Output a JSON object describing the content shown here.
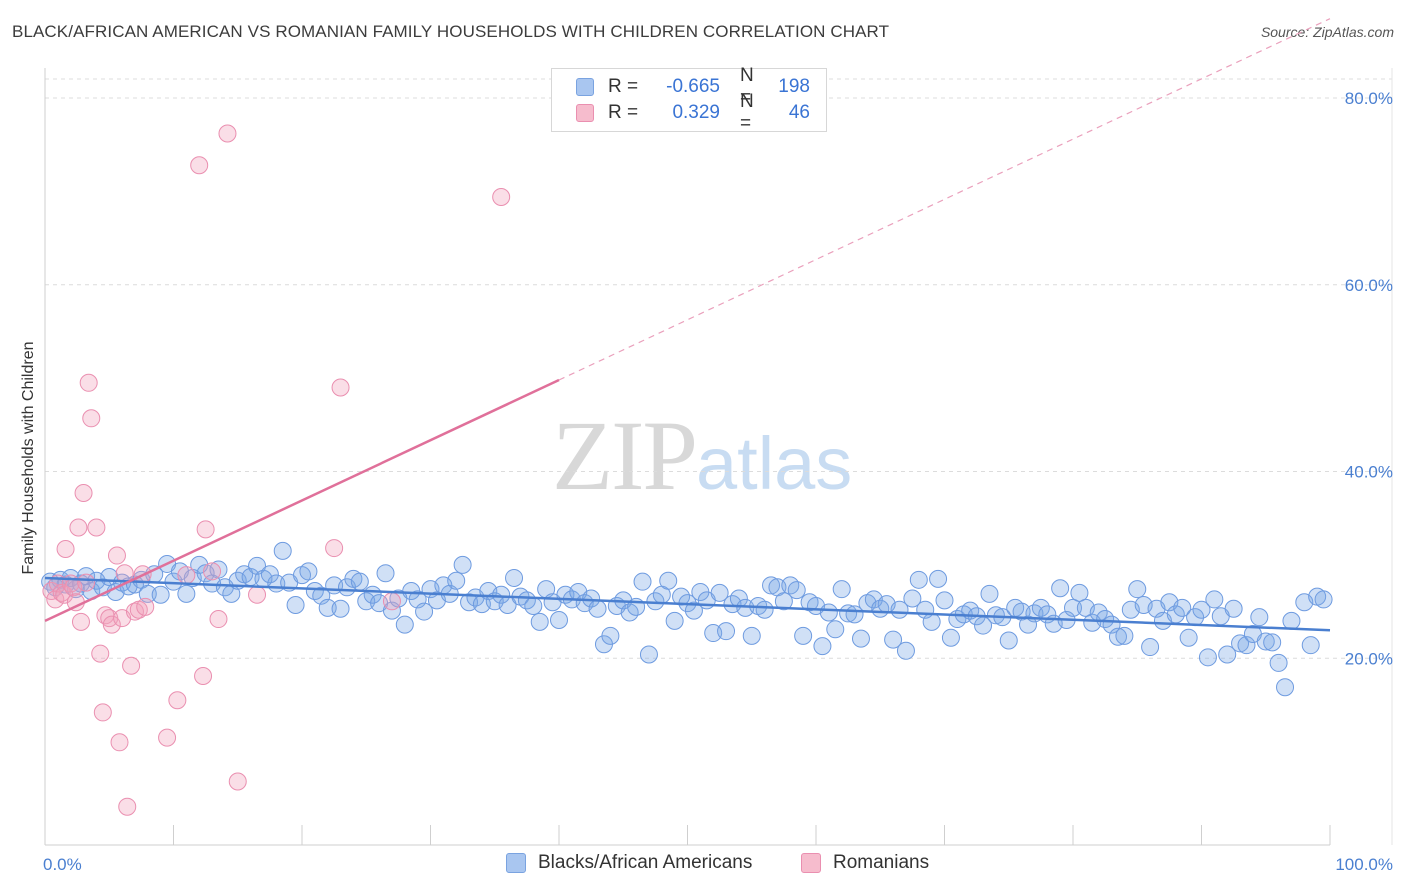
{
  "title": "BLACK/AFRICAN AMERICAN VS ROMANIAN FAMILY HOUSEHOLDS WITH CHILDREN CORRELATION CHART",
  "source": "Source: ZipAtlas.com",
  "watermark": {
    "zip": "ZIP",
    "atlas": "atlas"
  },
  "colors": {
    "blue": "#4a7fd0",
    "blue_fill": "rgba(120,165,230,0.35)",
    "blue_stroke": "#6e9be0",
    "pink": "#e0709a",
    "pink_fill": "rgba(240,160,185,0.35)",
    "pink_stroke": "#ea8fb0",
    "grid": "#dcdcdc"
  },
  "legend": {
    "rows": [
      {
        "r_label": "R =",
        "r_value": "-0.665",
        "n_label": "N =",
        "n_value": "198",
        "color": "#a9c6f0"
      },
      {
        "r_label": "R =",
        "r_value": "0.329",
        "n_label": "N =",
        "n_value": "46",
        "color": "#f6bccd"
      }
    ]
  },
  "bottom_legend": [
    {
      "label": "Blacks/African Americans",
      "color": "#a9c6f0"
    },
    {
      "label": "Romanians",
      "color": "#f6bccd"
    }
  ],
  "chart_data": {
    "type": "scatter",
    "title": "BLACK/AFRICAN AMERICAN VS ROMANIAN FAMILY HOUSEHOLDS WITH CHILDREN CORRELATION CHART",
    "xlabel": "",
    "ylabel": "Family Households with Children",
    "xlim": [
      0,
      100
    ],
    "ylim": [
      0,
      83
    ],
    "x_tick_labels": [
      {
        "value": 0,
        "label": "0.0%"
      },
      {
        "value": 100,
        "label": "100.0%"
      }
    ],
    "y_ticks": [
      {
        "value": 20,
        "label": "20.0%"
      },
      {
        "value": 40,
        "label": "40.0%"
      },
      {
        "value": 60,
        "label": "60.0%"
      },
      {
        "value": 80,
        "label": "80.0%"
      }
    ],
    "series": [
      {
        "name": "Blacks/African Americans",
        "color": "#4a7fd0",
        "trend": {
          "x0": 0,
          "y0": 28.6,
          "x1": 100,
          "y1": 23.0
        },
        "points": [
          [
            0.4,
            28.2
          ],
          [
            0.8,
            27.6
          ],
          [
            1.2,
            28.4
          ],
          [
            1.6,
            27.9
          ],
          [
            2.0,
            28.6
          ],
          [
            2.4,
            27.4
          ],
          [
            2.8,
            28.0
          ],
          [
            3.2,
            28.8
          ],
          [
            3.6,
            27.2
          ],
          [
            4.0,
            28.3
          ],
          [
            4.5,
            27.6
          ],
          [
            5.0,
            28.7
          ],
          [
            5.5,
            27.1
          ],
          [
            6.0,
            28.1
          ],
          [
            6.5,
            27.7
          ],
          [
            7.0,
            27.9
          ],
          [
            7.5,
            28.4
          ],
          [
            8.0,
            26.9
          ],
          [
            8.5,
            29.0
          ],
          [
            9.0,
            26.8
          ],
          [
            9.5,
            30.1
          ],
          [
            10.0,
            28.2
          ],
          [
            10.5,
            29.3
          ],
          [
            11.0,
            26.9
          ],
          [
            11.5,
            28.6
          ],
          [
            12.0,
            30.0
          ],
          [
            12.5,
            29.1
          ],
          [
            13.0,
            28.0
          ],
          [
            13.5,
            29.5
          ],
          [
            14.0,
            27.6
          ],
          [
            14.5,
            26.9
          ],
          [
            15.0,
            28.3
          ],
          [
            15.5,
            29.0
          ],
          [
            16.0,
            28.7
          ],
          [
            16.5,
            29.9
          ],
          [
            17.0,
            28.5
          ],
          [
            17.5,
            29.0
          ],
          [
            18.0,
            28.0
          ],
          [
            18.5,
            31.5
          ],
          [
            19.0,
            28.1
          ],
          [
            19.5,
            25.7
          ],
          [
            20.0,
            28.9
          ],
          [
            20.5,
            29.3
          ],
          [
            21.0,
            27.2
          ],
          [
            21.5,
            26.7
          ],
          [
            22.0,
            25.4
          ],
          [
            22.5,
            27.8
          ],
          [
            23.0,
            25.3
          ],
          [
            23.5,
            27.6
          ],
          [
            24.0,
            28.5
          ],
          [
            24.5,
            28.2
          ],
          [
            25.0,
            26.1
          ],
          [
            25.5,
            26.8
          ],
          [
            26.0,
            25.9
          ],
          [
            26.5,
            29.1
          ],
          [
            27.0,
            25.1
          ],
          [
            27.5,
            26.4
          ],
          [
            28.0,
            23.6
          ],
          [
            28.5,
            27.2
          ],
          [
            29.0,
            26.3
          ],
          [
            29.5,
            25.0
          ],
          [
            30.0,
            27.4
          ],
          [
            30.5,
            26.2
          ],
          [
            31.0,
            27.8
          ],
          [
            31.5,
            26.9
          ],
          [
            32.0,
            28.3
          ],
          [
            32.5,
            30.0
          ],
          [
            33.0,
            26.0
          ],
          [
            33.5,
            26.5
          ],
          [
            34.0,
            25.8
          ],
          [
            34.5,
            27.2
          ],
          [
            35.0,
            26.1
          ],
          [
            35.5,
            26.8
          ],
          [
            36.0,
            25.7
          ],
          [
            36.5,
            28.6
          ],
          [
            37.0,
            26.6
          ],
          [
            37.5,
            26.2
          ],
          [
            38.0,
            25.6
          ],
          [
            38.5,
            23.9
          ],
          [
            39.0,
            27.4
          ],
          [
            39.5,
            26.0
          ],
          [
            40.0,
            24.1
          ],
          [
            40.5,
            26.8
          ],
          [
            41.0,
            26.3
          ],
          [
            41.5,
            27.1
          ],
          [
            42.0,
            25.9
          ],
          [
            42.5,
            26.4
          ],
          [
            43.0,
            25.3
          ],
          [
            43.5,
            21.5
          ],
          [
            44.0,
            22.4
          ],
          [
            44.5,
            25.6
          ],
          [
            45.0,
            26.2
          ],
          [
            45.5,
            24.9
          ],
          [
            46.0,
            25.5
          ],
          [
            46.5,
            28.2
          ],
          [
            47.0,
            20.4
          ],
          [
            47.5,
            26.1
          ],
          [
            48.0,
            26.8
          ],
          [
            48.5,
            28.3
          ],
          [
            49.0,
            24.0
          ],
          [
            49.5,
            26.6
          ],
          [
            50.0,
            25.9
          ],
          [
            50.5,
            25.1
          ],
          [
            51.0,
            27.1
          ],
          [
            51.5,
            26.2
          ],
          [
            52.0,
            22.7
          ],
          [
            52.5,
            27.0
          ],
          [
            53.0,
            22.9
          ],
          [
            53.5,
            25.8
          ],
          [
            54.0,
            26.4
          ],
          [
            54.5,
            25.4
          ],
          [
            55.0,
            22.4
          ],
          [
            55.5,
            25.6
          ],
          [
            56.0,
            25.2
          ],
          [
            56.5,
            27.8
          ],
          [
            57.0,
            27.6
          ],
          [
            57.5,
            26.1
          ],
          [
            58.0,
            27.8
          ],
          [
            58.5,
            27.3
          ],
          [
            59.0,
            22.4
          ],
          [
            59.5,
            26.0
          ],
          [
            60.0,
            25.6
          ],
          [
            60.5,
            21.3
          ],
          [
            61.0,
            24.9
          ],
          [
            61.5,
            23.1
          ],
          [
            62.0,
            27.4
          ],
          [
            62.5,
            24.8
          ],
          [
            63.0,
            24.7
          ],
          [
            63.5,
            22.1
          ],
          [
            64.0,
            25.9
          ],
          [
            64.5,
            26.3
          ],
          [
            65.0,
            25.3
          ],
          [
            65.5,
            25.8
          ],
          [
            66.0,
            22.0
          ],
          [
            66.5,
            25.2
          ],
          [
            67.0,
            20.8
          ],
          [
            67.5,
            26.4
          ],
          [
            68.0,
            28.4
          ],
          [
            68.5,
            25.2
          ],
          [
            69.0,
            23.9
          ],
          [
            69.5,
            28.5
          ],
          [
            70.0,
            26.2
          ],
          [
            70.5,
            22.2
          ],
          [
            71.0,
            24.2
          ],
          [
            71.5,
            24.7
          ],
          [
            72.0,
            25.1
          ],
          [
            72.5,
            24.5
          ],
          [
            73.0,
            23.5
          ],
          [
            73.5,
            26.9
          ],
          [
            74.0,
            24.6
          ],
          [
            74.5,
            24.4
          ],
          [
            75.0,
            21.9
          ],
          [
            75.5,
            25.4
          ],
          [
            76.0,
            25.0
          ],
          [
            76.5,
            23.6
          ],
          [
            77.0,
            24.8
          ],
          [
            77.5,
            25.4
          ],
          [
            78.0,
            24.7
          ],
          [
            78.5,
            23.7
          ],
          [
            79.0,
            27.5
          ],
          [
            79.5,
            24.1
          ],
          [
            80.0,
            25.4
          ],
          [
            80.5,
            27.0
          ],
          [
            81.0,
            25.4
          ],
          [
            81.5,
            23.8
          ],
          [
            82.0,
            24.9
          ],
          [
            82.5,
            24.2
          ],
          [
            83.0,
            23.6
          ],
          [
            83.5,
            22.3
          ],
          [
            84.0,
            22.4
          ],
          [
            84.5,
            25.2
          ],
          [
            85.0,
            27.4
          ],
          [
            85.5,
            25.7
          ],
          [
            86.0,
            21.2
          ],
          [
            86.5,
            25.3
          ],
          [
            87.0,
            24.0
          ],
          [
            87.5,
            26.0
          ],
          [
            88.0,
            24.7
          ],
          [
            88.5,
            25.4
          ],
          [
            89.0,
            22.2
          ],
          [
            89.5,
            24.4
          ],
          [
            90.0,
            25.2
          ],
          [
            90.5,
            20.1
          ],
          [
            91.0,
            26.3
          ],
          [
            91.5,
            24.5
          ],
          [
            92.0,
            20.4
          ],
          [
            92.5,
            25.3
          ],
          [
            93.0,
            21.6
          ],
          [
            93.5,
            21.4
          ],
          [
            94.0,
            22.6
          ],
          [
            94.5,
            24.4
          ],
          [
            95.0,
            21.8
          ],
          [
            95.5,
            21.7
          ],
          [
            96.0,
            19.5
          ],
          [
            96.5,
            16.9
          ],
          [
            97.0,
            24.0
          ],
          [
            98.0,
            26.0
          ],
          [
            98.5,
            21.4
          ],
          [
            99.0,
            26.6
          ],
          [
            99.5,
            26.3
          ]
        ]
      },
      {
        "name": "Romanians",
        "color": "#e0709a",
        "trend": {
          "x0": 0,
          "y0": 24.0,
          "x1": 40,
          "y1": 49.8
        },
        "trend_dashed": {
          "x0": 40,
          "y0": 49.8,
          "x1": 100,
          "y1": 88.5
        },
        "points": [
          [
            0.5,
            27.2
          ],
          [
            0.8,
            26.3
          ],
          [
            1.0,
            28.0
          ],
          [
            1.3,
            27.0
          ],
          [
            1.5,
            26.8
          ],
          [
            1.6,
            31.7
          ],
          [
            2.0,
            28.0
          ],
          [
            2.2,
            27.6
          ],
          [
            2.4,
            26.0
          ],
          [
            2.6,
            34.0
          ],
          [
            2.8,
            23.9
          ],
          [
            3.0,
            37.7
          ],
          [
            3.2,
            28.1
          ],
          [
            3.4,
            49.5
          ],
          [
            3.6,
            45.7
          ],
          [
            4.0,
            34.0
          ],
          [
            4.3,
            20.5
          ],
          [
            4.5,
            14.2
          ],
          [
            4.7,
            24.6
          ],
          [
            5.0,
            24.3
          ],
          [
            5.2,
            23.6
          ],
          [
            5.6,
            31.0
          ],
          [
            5.8,
            11.0
          ],
          [
            6.0,
            24.3
          ],
          [
            6.2,
            29.1
          ],
          [
            6.4,
            4.1
          ],
          [
            6.7,
            19.2
          ],
          [
            7.0,
            25.0
          ],
          [
            7.3,
            25.2
          ],
          [
            7.6,
            29.0
          ],
          [
            7.8,
            25.5
          ],
          [
            9.5,
            11.5
          ],
          [
            10.3,
            15.5
          ],
          [
            11.0,
            28.9
          ],
          [
            12.0,
            72.8
          ],
          [
            12.3,
            18.1
          ],
          [
            12.5,
            33.8
          ],
          [
            13.0,
            29.3
          ],
          [
            13.5,
            24.2
          ],
          [
            14.2,
            76.2
          ],
          [
            15.0,
            6.8
          ],
          [
            16.5,
            26.8
          ],
          [
            22.5,
            31.8
          ],
          [
            23.0,
            49.0
          ],
          [
            27.0,
            26.1
          ],
          [
            35.5,
            69.4
          ]
        ]
      }
    ]
  }
}
